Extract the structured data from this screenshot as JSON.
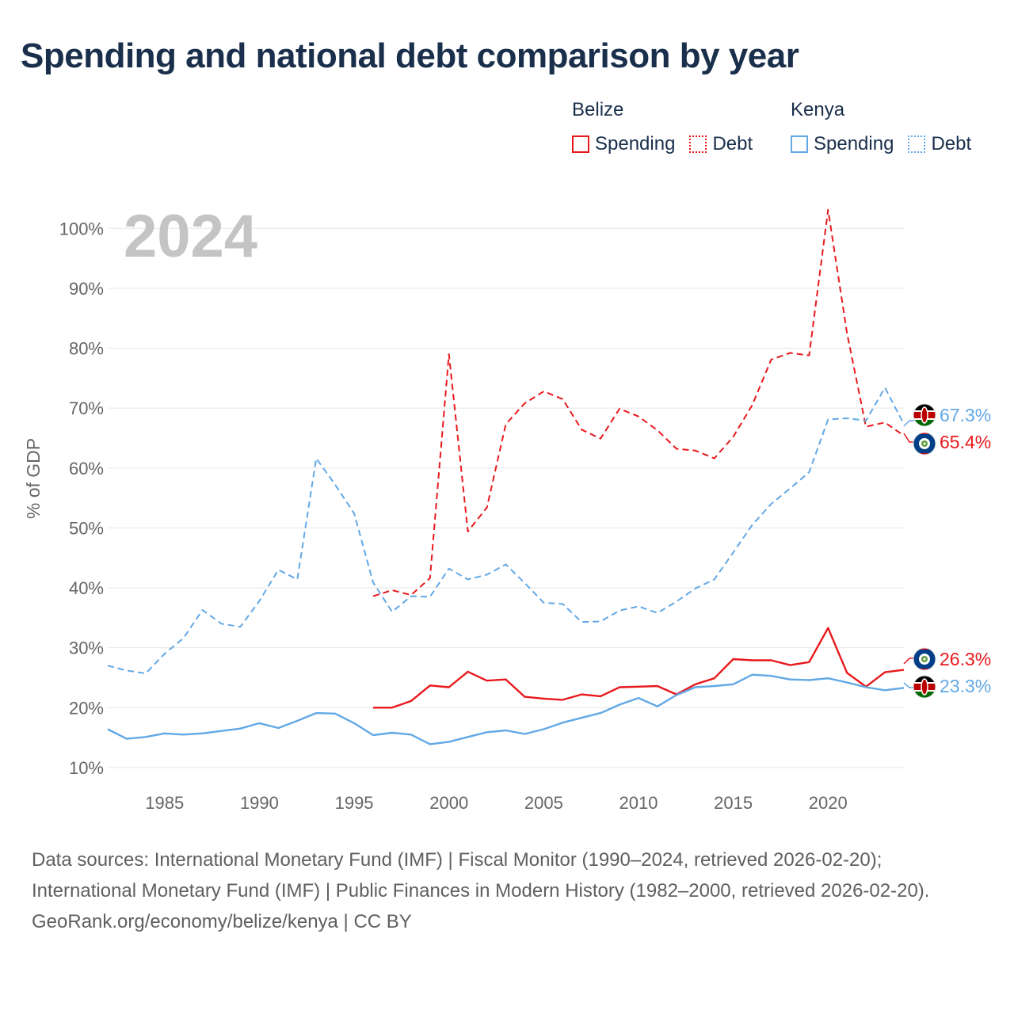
{
  "title": "Spending and national debt comparison by year",
  "legend": {
    "groups": [
      {
        "country": "Belize",
        "color": "#e8191c",
        "spending_label": "Spending",
        "debt_label": "Debt"
      },
      {
        "country": "Kenya",
        "color": "#62a8e5",
        "spending_label": "Spending",
        "debt_label": "Debt"
      }
    ]
  },
  "year_overlay": "2024",
  "end_labels": {
    "kenya_debt": "67.3%",
    "belize_debt": "65.4%",
    "belize_spending": "26.3%",
    "kenya_spending": "23.3%"
  },
  "footer": {
    "sources": "Data sources: International Monetary Fund (IMF) | Fiscal Monitor (1990–2024, retrieved 2026-02-20); International Monetary Fund (IMF) | Public Finances in Modern History (1982–2000, retrieved 2026-02-20).",
    "credit": "GeoRank.org/economy/belize/kenya | CC BY"
  },
  "chart_data": {
    "type": "line",
    "title": "Spending and national debt comparison by year",
    "xlabel": "",
    "ylabel": "% of GDP",
    "xlim": [
      1982,
      2024
    ],
    "ylim": [
      8,
      104
    ],
    "xticks": [
      1985,
      1990,
      1995,
      2000,
      2005,
      2010,
      2015,
      2020
    ],
    "yticks": [
      10,
      20,
      30,
      40,
      50,
      60,
      70,
      80,
      90,
      100
    ],
    "ytick_labels": [
      "10%",
      "20%",
      "30%",
      "40%",
      "50%",
      "60%",
      "70%",
      "80%",
      "90%",
      "100%"
    ],
    "grid": "horizontal",
    "series": [
      {
        "name": "Belize Debt",
        "country": "Belize",
        "kind": "debt",
        "color": "#e8191c",
        "dashed": true,
        "x": [
          1996,
          1997,
          1998,
          1999,
          2000,
          2001,
          2002,
          2003,
          2004,
          2005,
          2006,
          2007,
          2008,
          2009,
          2010,
          2011,
          2012,
          2013,
          2014,
          2015,
          2016,
          2017,
          2018,
          2019,
          2020,
          2021,
          2022,
          2023,
          2024
        ],
        "values": [
          38.6,
          39.6,
          38.8,
          41.6,
          79.0,
          49.4,
          53.4,
          67.3,
          70.8,
          72.8,
          71.5,
          66.4,
          64.9,
          69.9,
          68.6,
          66.3,
          63.2,
          62.9,
          61.6,
          65.2,
          70.5,
          78.1,
          79.2,
          78.8,
          103.1,
          82.5,
          66.9,
          67.6,
          65.4
        ]
      },
      {
        "name": "Kenya Debt",
        "country": "Kenya",
        "kind": "debt",
        "color": "#62a8e5",
        "dashed": true,
        "x": [
          1982,
          1983,
          1984,
          1985,
          1986,
          1987,
          1988,
          1989,
          1990,
          1991,
          1992,
          1993,
          1994,
          1995,
          1996,
          1997,
          1998,
          1999,
          2000,
          2001,
          2002,
          2003,
          2004,
          2005,
          2006,
          2007,
          2008,
          2009,
          2010,
          2011,
          2012,
          2013,
          2014,
          2015,
          2016,
          2017,
          2018,
          2019,
          2020,
          2021,
          2022,
          2023,
          2024
        ],
        "values": [
          27.0,
          26.2,
          25.7,
          29.0,
          31.6,
          36.3,
          34.0,
          33.5,
          37.8,
          43.0,
          41.4,
          61.6,
          57.2,
          52.4,
          40.9,
          36.0,
          38.6,
          38.5,
          43.2,
          41.4,
          42.2,
          43.9,
          40.8,
          37.5,
          37.3,
          34.3,
          34.4,
          36.2,
          36.9,
          35.8,
          37.7,
          39.9,
          41.4,
          45.9,
          50.5,
          54.0,
          56.6,
          59.3,
          68.1,
          68.3,
          67.9,
          73.4,
          67.3
        ]
      },
      {
        "name": "Belize Spending",
        "country": "Belize",
        "kind": "spending",
        "color": "#e8191c",
        "dashed": false,
        "x": [
          1996,
          1997,
          1998,
          1999,
          2000,
          2001,
          2002,
          2003,
          2004,
          2005,
          2006,
          2007,
          2008,
          2009,
          2010,
          2011,
          2012,
          2013,
          2014,
          2015,
          2016,
          2017,
          2018,
          2019,
          2020,
          2021,
          2022,
          2023,
          2024
        ],
        "values": [
          20.0,
          20.0,
          21.1,
          23.7,
          23.4,
          26.0,
          24.5,
          24.7,
          21.8,
          21.5,
          21.3,
          22.2,
          21.9,
          23.4,
          23.5,
          23.6,
          22.2,
          23.9,
          24.9,
          28.1,
          27.9,
          27.9,
          27.1,
          27.6,
          33.3,
          25.8,
          23.5,
          25.9,
          26.3
        ]
      },
      {
        "name": "Kenya Spending",
        "country": "Kenya",
        "kind": "spending",
        "color": "#62a8e5",
        "dashed": false,
        "x": [
          1982,
          1983,
          1984,
          1985,
          1986,
          1987,
          1988,
          1989,
          1990,
          1991,
          1992,
          1993,
          1994,
          1995,
          1996,
          1997,
          1998,
          1999,
          2000,
          2001,
          2002,
          2003,
          2004,
          2005,
          2006,
          2007,
          2008,
          2009,
          2010,
          2011,
          2012,
          2013,
          2014,
          2015,
          2016,
          2017,
          2018,
          2019,
          2020,
          2021,
          2022,
          2023,
          2024
        ],
        "values": [
          16.4,
          14.8,
          15.1,
          15.7,
          15.5,
          15.7,
          16.1,
          16.5,
          17.4,
          16.6,
          17.8,
          19.1,
          19.0,
          17.4,
          15.4,
          15.8,
          15.5,
          13.9,
          14.3,
          15.1,
          15.9,
          16.2,
          15.6,
          16.4,
          17.5,
          18.3,
          19.1,
          20.5,
          21.6,
          20.2,
          22.1,
          23.4,
          23.6,
          23.9,
          25.5,
          25.3,
          24.7,
          24.6,
          24.9,
          24.2,
          23.4,
          22.9,
          23.3
        ]
      }
    ]
  }
}
